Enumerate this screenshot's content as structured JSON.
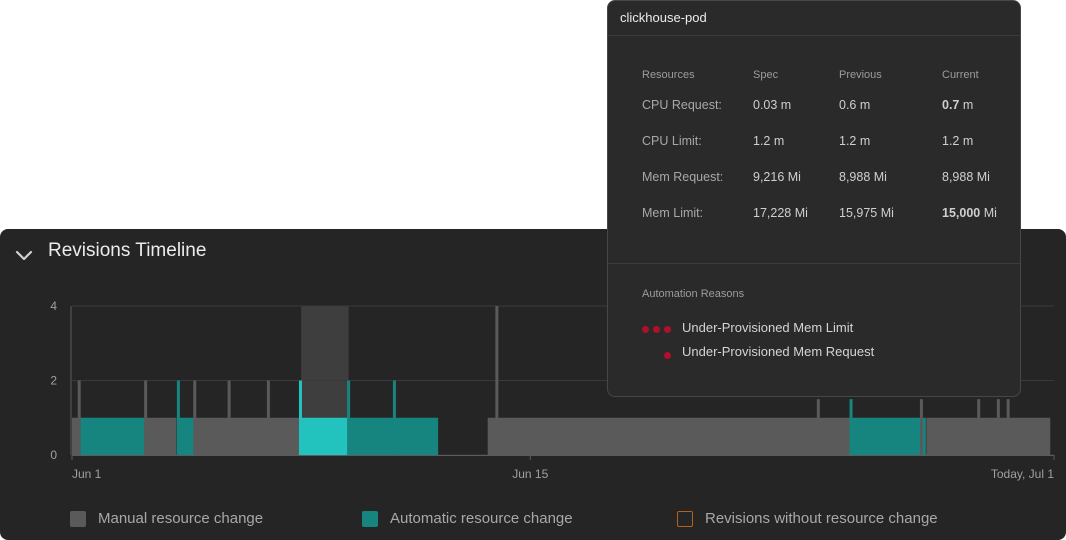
{
  "panel": {
    "title": "Revisions Timeline",
    "legend": [
      {
        "label": "Manual resource change",
        "color": "#5a5a5a",
        "style": "filled"
      },
      {
        "label": "Automatic resource change",
        "color": "#17857f",
        "style": "filled"
      },
      {
        "label": "Revisions without resource change",
        "color": "#b5611f",
        "style": "outline"
      }
    ]
  },
  "chart_data": {
    "type": "bar",
    "title": "",
    "ylabel": "",
    "ylim": [
      0,
      4
    ],
    "yticks": [
      "0",
      "2",
      "4"
    ],
    "x_ticks": [
      "Jun 1",
      "Jun 15",
      "Today, Jul 1"
    ],
    "x_range_days": [
      0,
      30
    ],
    "grid": true,
    "segments": [
      {
        "kind": "manual",
        "start": 0.0,
        "end": 0.2,
        "value": 1
      },
      {
        "kind": "auto",
        "start": 0.2,
        "end": 2.25,
        "value": 1
      },
      {
        "kind": "manual",
        "start": 2.25,
        "end": 3.2,
        "value": 1
      },
      {
        "kind": "auto",
        "start": 3.2,
        "end": 3.75,
        "value": 1
      },
      {
        "kind": "manual",
        "start": 3.75,
        "end": 4.8,
        "value": 1
      },
      {
        "kind": "manual",
        "start": 4.8,
        "end": 6.0,
        "value": 1
      },
      {
        "kind": "manual",
        "start": 6.0,
        "end": 7.0,
        "value": 1
      },
      {
        "kind": "auto-selected",
        "start": 7.0,
        "end": 8.45,
        "value": 1
      },
      {
        "kind": "auto",
        "start": 8.45,
        "end": 11.2,
        "value": 1
      },
      {
        "kind": "manual",
        "start": 12.7,
        "end": 13.0,
        "value": 1
      },
      {
        "kind": "manual",
        "start": 13.0,
        "end": 22.8,
        "value": 1
      },
      {
        "kind": "manual",
        "start": 22.8,
        "end": 23.8,
        "value": 1
      },
      {
        "kind": "auto",
        "start": 23.8,
        "end": 26.1,
        "value": 1
      },
      {
        "kind": "manual",
        "start": 26.1,
        "end": 27.7,
        "value": 1
      },
      {
        "kind": "manual",
        "start": 27.7,
        "end": 28.3,
        "value": 1
      },
      {
        "kind": "manual",
        "start": 28.3,
        "end": 29.9,
        "value": 1
      }
    ],
    "spikes": [
      {
        "at": 0.22,
        "value": 2,
        "kind": "manual"
      },
      {
        "at": 2.25,
        "value": 2,
        "kind": "manual"
      },
      {
        "at": 3.25,
        "value": 2,
        "kind": "auto"
      },
      {
        "at": 3.75,
        "value": 2,
        "kind": "manual"
      },
      {
        "at": 4.8,
        "value": 2,
        "kind": "manual"
      },
      {
        "at": 6.0,
        "value": 2,
        "kind": "manual"
      },
      {
        "at": 6.98,
        "value": 2,
        "kind": "auto-selected"
      },
      {
        "at": 8.45,
        "value": 2,
        "kind": "auto"
      },
      {
        "at": 9.85,
        "value": 2,
        "kind": "auto"
      },
      {
        "at": 12.98,
        "value": 4,
        "kind": "manual"
      },
      {
        "at": 22.8,
        "value": 1.5,
        "kind": "manual"
      },
      {
        "at": 23.8,
        "value": 1.5,
        "kind": "auto"
      },
      {
        "at": 25.95,
        "value": 1.5,
        "kind": "manual"
      },
      {
        "at": 27.7,
        "value": 1.5,
        "kind": "manual"
      },
      {
        "at": 28.3,
        "value": 1.5,
        "kind": "manual"
      },
      {
        "at": 28.6,
        "value": 1.5,
        "kind": "manual"
      }
    ],
    "selected_range": [
      7.0,
      8.45
    ],
    "colors": {
      "manual": "#5a5a5a",
      "auto": "#17857f",
      "auto-selected": "#22c3bf",
      "selected-band": "#3e3e3f",
      "grid": "#3a3a3a",
      "axis": "#5c5c5c"
    }
  },
  "tooltip": {
    "title": "clickhouse-pod",
    "headers": [
      "Resources",
      "Spec",
      "Previous",
      "Current"
    ],
    "rows": [
      {
        "name": "CPU Request:",
        "spec": "0.03 m",
        "previous": "0.6 m",
        "current_value": "0.7",
        "current_unit": " m",
        "highlight": true
      },
      {
        "name": "CPU Limit:",
        "spec": "1.2 m",
        "previous": "1.2 m",
        "current_value": "1.2 m",
        "current_unit": "",
        "highlight": false
      },
      {
        "name": "Mem Request:",
        "spec": "9,216 Mi",
        "previous": "8,988 Mi",
        "current_value": "8,988 Mi",
        "current_unit": "",
        "highlight": false
      },
      {
        "name": "Mem Limit:",
        "spec": "17,228 Mi",
        "previous": "15,975 Mi",
        "current_value": "15,000",
        "current_unit": " Mi",
        "highlight": true
      }
    ],
    "reasons_title": "Automation Reasons",
    "reasons": [
      {
        "label": "Under-Provisioned Mem Limit",
        "dots": 3
      },
      {
        "label": "Under-Provisioned Mem Request",
        "dots": 1
      }
    ],
    "accent_color": "#1aa3a3",
    "dot_color": "#b0102b"
  }
}
